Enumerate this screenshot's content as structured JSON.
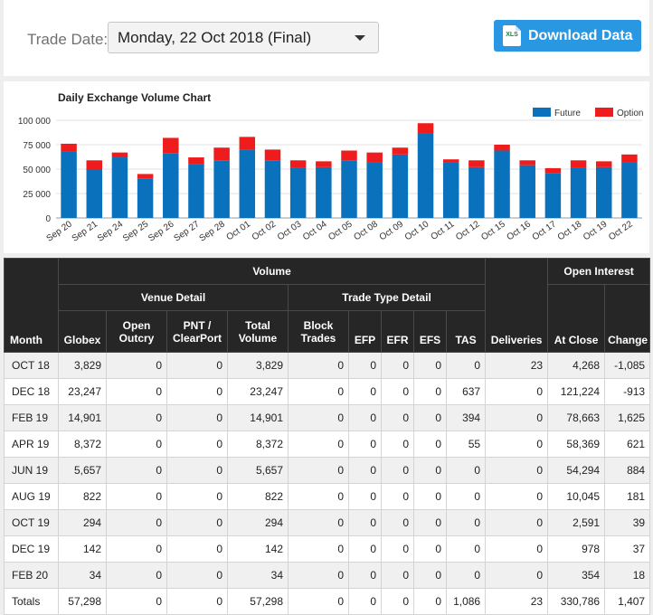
{
  "header": {
    "trade_date_label": "Trade Date:",
    "trade_date_value": "Monday, 22 Oct 2018 (Final)",
    "download_label": "Download Data",
    "download_icon_text": "XLS"
  },
  "chart_data": {
    "type": "bar",
    "stacked": true,
    "title": "Daily Exchange Volume Chart",
    "categories": [
      "Sep 20",
      "Sep 21",
      "Sep 24",
      "Sep 25",
      "Sep 26",
      "Sep 27",
      "Sep 28",
      "Oct 01",
      "Oct 02",
      "Oct 03",
      "Oct 04",
      "Oct 05",
      "Oct 08",
      "Oct 09",
      "Oct 10",
      "Oct 11",
      "Oct 12",
      "Oct 15",
      "Oct 16",
      "Oct 17",
      "Oct 18",
      "Oct 19",
      "Oct 22"
    ],
    "series": [
      {
        "name": "Future",
        "color": "#0a72bd",
        "values": [
          68000,
          50000,
          62000,
          40000,
          66000,
          55000,
          59000,
          70000,
          59000,
          51000,
          52000,
          59000,
          57000,
          65000,
          87000,
          57000,
          52000,
          69000,
          54000,
          46000,
          51000,
          52000,
          57000
        ]
      },
      {
        "name": "Option",
        "color": "#ee1c1c",
        "values": [
          8000,
          9000,
          5000,
          5000,
          16000,
          7000,
          13000,
          13000,
          11000,
          8000,
          6000,
          10000,
          10000,
          7000,
          10000,
          3000,
          7000,
          6000,
          5000,
          5000,
          8000,
          6000,
          8000
        ]
      }
    ],
    "ylim": [
      0,
      100000
    ],
    "yticks": [
      "0",
      "25 000",
      "50 000",
      "75 000",
      "100 000"
    ],
    "legend_position": "top-right",
    "grid": true
  },
  "table": {
    "group_volume": "Volume",
    "group_open_interest": "Open Interest",
    "group_venue": "Venue Detail",
    "group_trade_type": "Trade Type Detail",
    "col_month": "Month",
    "col_globex": "Globex",
    "col_open_outcry": [
      "Open",
      "Outcry"
    ],
    "col_pnt": [
      "PNT /",
      "ClearPort"
    ],
    "col_total_volume": [
      "Total",
      "Volume"
    ],
    "col_block": [
      "Block",
      "Trades"
    ],
    "col_efp": "EFP",
    "col_efr": "EFR",
    "col_efs": "EFS",
    "col_tas": "TAS",
    "col_deliveries": "Deliveries",
    "col_at_close": "At Close",
    "col_change": "Change",
    "rows": [
      [
        "OCT 18",
        "3,829",
        "0",
        "0",
        "3,829",
        "0",
        "0",
        "0",
        "0",
        "0",
        "23",
        "4,268",
        "-1,085"
      ],
      [
        "DEC 18",
        "23,247",
        "0",
        "0",
        "23,247",
        "0",
        "0",
        "0",
        "0",
        "637",
        "0",
        "121,224",
        "-913"
      ],
      [
        "FEB 19",
        "14,901",
        "0",
        "0",
        "14,901",
        "0",
        "0",
        "0",
        "0",
        "394",
        "0",
        "78,663",
        "1,625"
      ],
      [
        "APR 19",
        "8,372",
        "0",
        "0",
        "8,372",
        "0",
        "0",
        "0",
        "0",
        "55",
        "0",
        "58,369",
        "621"
      ],
      [
        "JUN 19",
        "5,657",
        "0",
        "0",
        "5,657",
        "0",
        "0",
        "0",
        "0",
        "0",
        "0",
        "54,294",
        "884"
      ],
      [
        "AUG 19",
        "822",
        "0",
        "0",
        "822",
        "0",
        "0",
        "0",
        "0",
        "0",
        "0",
        "10,045",
        "181"
      ],
      [
        "OCT 19",
        "294",
        "0",
        "0",
        "294",
        "0",
        "0",
        "0",
        "0",
        "0",
        "0",
        "2,591",
        "39"
      ],
      [
        "DEC 19",
        "142",
        "0",
        "0",
        "142",
        "0",
        "0",
        "0",
        "0",
        "0",
        "0",
        "978",
        "37"
      ],
      [
        "FEB 20",
        "34",
        "0",
        "0",
        "34",
        "0",
        "0",
        "0",
        "0",
        "0",
        "0",
        "354",
        "18"
      ]
    ],
    "totals": [
      "Totals",
      "57,298",
      "0",
      "0",
      "57,298",
      "0",
      "0",
      "0",
      "0",
      "1,086",
      "23",
      "330,786",
      "1,407"
    ]
  }
}
